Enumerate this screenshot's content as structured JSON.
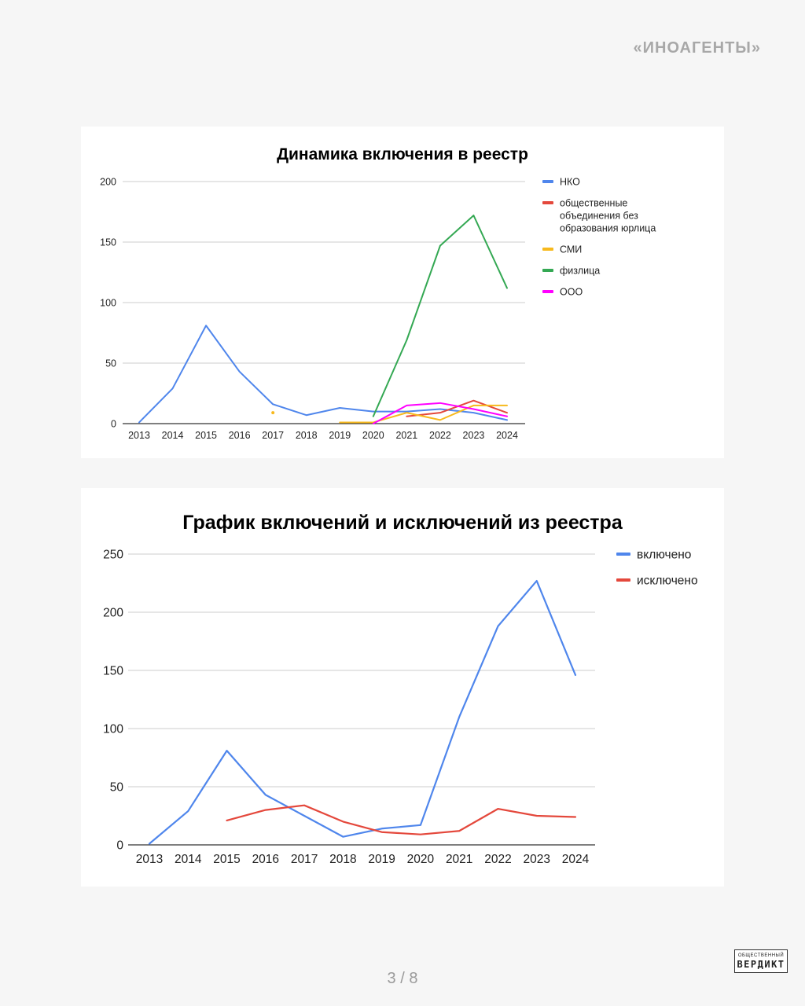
{
  "header": {
    "topic": "«ИНОАГЕНТЫ»"
  },
  "footer": {
    "page": "3 / 8"
  },
  "logo": {
    "line1": "ОБЩЕСТВЕННЫЙ",
    "line2": "ВЕРДИКТ"
  },
  "chart_data": [
    {
      "type": "line",
      "title": "Динамика включения в реестр",
      "xlabel": "",
      "ylabel": "",
      "categories": [
        "2013",
        "2014",
        "2015",
        "2016",
        "2017",
        "2018",
        "2019",
        "2020",
        "2021",
        "2022",
        "2023",
        "2024"
      ],
      "ylim": [
        0,
        200
      ],
      "yticks": [
        0,
        50,
        100,
        150,
        200
      ],
      "grid": true,
      "legend": "right",
      "series": [
        {
          "name": "НКО",
          "color": "#4f86ec",
          "values": [
            1,
            29,
            81,
            43,
            16,
            7,
            13,
            10,
            10,
            12,
            9,
            3
          ]
        },
        {
          "name": "общественные объединения без образования юрлица",
          "color": "#e4483c",
          "values": [
            null,
            null,
            null,
            null,
            null,
            null,
            null,
            null,
            6,
            9,
            19,
            9
          ]
        },
        {
          "name": "СМИ",
          "color": "#f7b91d",
          "values": [
            null,
            null,
            null,
            null,
            9,
            null,
            1,
            1,
            9,
            3,
            15,
            15
          ]
        },
        {
          "name": "физлица",
          "color": "#34a853",
          "values": [
            null,
            null,
            null,
            null,
            null,
            null,
            null,
            6,
            69,
            147,
            172,
            112
          ]
        },
        {
          "name": "ООО",
          "color": "#ff00ff",
          "values": [
            null,
            null,
            null,
            null,
            null,
            null,
            null,
            0,
            15,
            17,
            12,
            6
          ]
        }
      ]
    },
    {
      "type": "line",
      "title": "График включений и исключений из реестра",
      "xlabel": "",
      "ylabel": "",
      "categories": [
        "2013",
        "2014",
        "2015",
        "2016",
        "2017",
        "2018",
        "2019",
        "2020",
        "2021",
        "2022",
        "2023",
        "2024"
      ],
      "ylim": [
        0,
        250
      ],
      "yticks": [
        0,
        50,
        100,
        150,
        200,
        250
      ],
      "grid": true,
      "legend": "right",
      "series": [
        {
          "name": "включено",
          "color": "#4f86ec",
          "values": [
            1,
            29,
            81,
            43,
            25,
            7,
            14,
            17,
            110,
            188,
            227,
            146
          ]
        },
        {
          "name": "исключено",
          "color": "#e4483c",
          "values": [
            null,
            null,
            21,
            30,
            34,
            20,
            11,
            9,
            12,
            31,
            25,
            24
          ]
        }
      ]
    }
  ]
}
